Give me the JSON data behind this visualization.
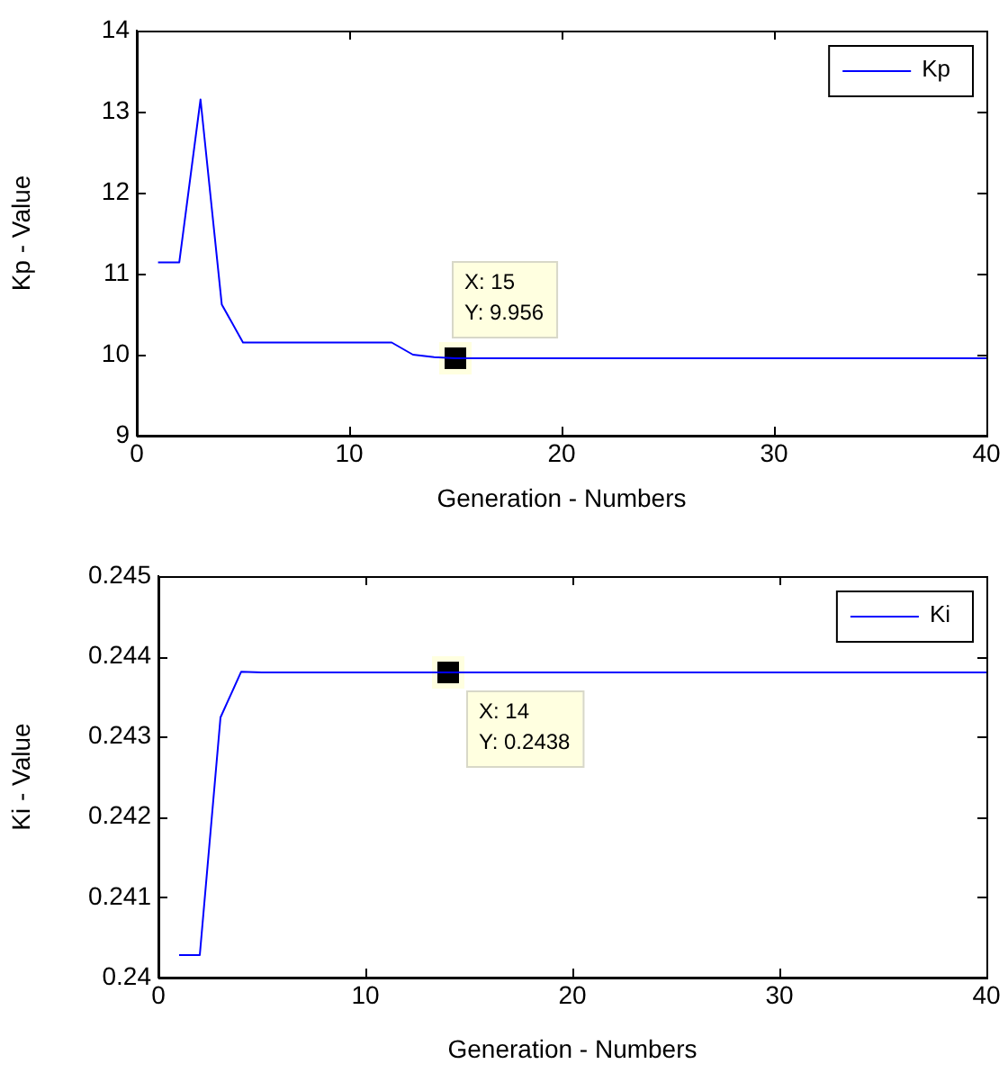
{
  "chart_data": [
    {
      "type": "line",
      "xlabel": "Generation - Numbers",
      "ylabel": "Kp - Value",
      "x": [
        1,
        2,
        3,
        4,
        5,
        6,
        7,
        8,
        9,
        10,
        11,
        12,
        13,
        14,
        15,
        16,
        17,
        18,
        19,
        20,
        21,
        22,
        23,
        24,
        25,
        26,
        27,
        28,
        29,
        30,
        31,
        32,
        33,
        34,
        35,
        36,
        37,
        38,
        39,
        40
      ],
      "series": [
        {
          "name": "Kp",
          "color": "#0000ff",
          "values": [
            11.14,
            11.14,
            13.15,
            10.62,
            10.15,
            10.15,
            10.15,
            10.15,
            10.15,
            10.15,
            10.15,
            10.15,
            10.0,
            9.97,
            9.956,
            9.956,
            9.956,
            9.956,
            9.956,
            9.956,
            9.956,
            9.956,
            9.956,
            9.956,
            9.956,
            9.956,
            9.956,
            9.956,
            9.956,
            9.956,
            9.956,
            9.956,
            9.956,
            9.956,
            9.956,
            9.956,
            9.956,
            9.956,
            9.956,
            9.956
          ]
        }
      ],
      "xlim": [
        0,
        40
      ],
      "xticks": [
        0,
        10,
        20,
        30,
        40
      ],
      "ylim": [
        9,
        14
      ],
      "yticks": [
        9,
        10,
        11,
        12,
        13,
        14
      ],
      "grid": false,
      "legend": "top right",
      "marker": "none",
      "annotations": [
        {
          "text": "X: 15\nY: 9.956",
          "x": 15,
          "y": 9.956
        }
      ]
    },
    {
      "type": "line",
      "xlabel": "Generation - Numbers",
      "ylabel": "Ki - Value",
      "x": [
        1,
        2,
        3,
        4,
        5,
        6,
        7,
        8,
        9,
        10,
        11,
        12,
        13,
        14,
        15,
        16,
        17,
        18,
        19,
        20,
        21,
        22,
        23,
        24,
        25,
        26,
        27,
        28,
        29,
        30,
        31,
        32,
        33,
        34,
        35,
        36,
        37,
        38,
        39,
        40
      ],
      "series": [
        {
          "name": "Ki",
          "color": "#0000ff",
          "values": [
            0.24028,
            0.24028,
            0.24324,
            0.24381,
            0.2438,
            0.2438,
            0.2438,
            0.2438,
            0.2438,
            0.2438,
            0.2438,
            0.2438,
            0.2438,
            0.2438,
            0.2438,
            0.2438,
            0.2438,
            0.2438,
            0.2438,
            0.2438,
            0.2438,
            0.2438,
            0.2438,
            0.2438,
            0.2438,
            0.2438,
            0.2438,
            0.2438,
            0.2438,
            0.2438,
            0.2438,
            0.2438,
            0.2438,
            0.2438,
            0.2438,
            0.2438,
            0.2438,
            0.2438,
            0.2438,
            0.2438
          ]
        }
      ],
      "xlim": [
        0,
        40
      ],
      "xticks": [
        0,
        10,
        20,
        30,
        40
      ],
      "ylim": [
        0.24,
        0.245
      ],
      "yticks": [
        0.24,
        0.241,
        0.242,
        0.243,
        0.244,
        0.245
      ],
      "grid": false,
      "legend": "top right",
      "marker": "none",
      "annotations": [
        {
          "text": "X: 14\nY: 0.2438",
          "x": 14,
          "y": 0.2438
        }
      ]
    }
  ]
}
